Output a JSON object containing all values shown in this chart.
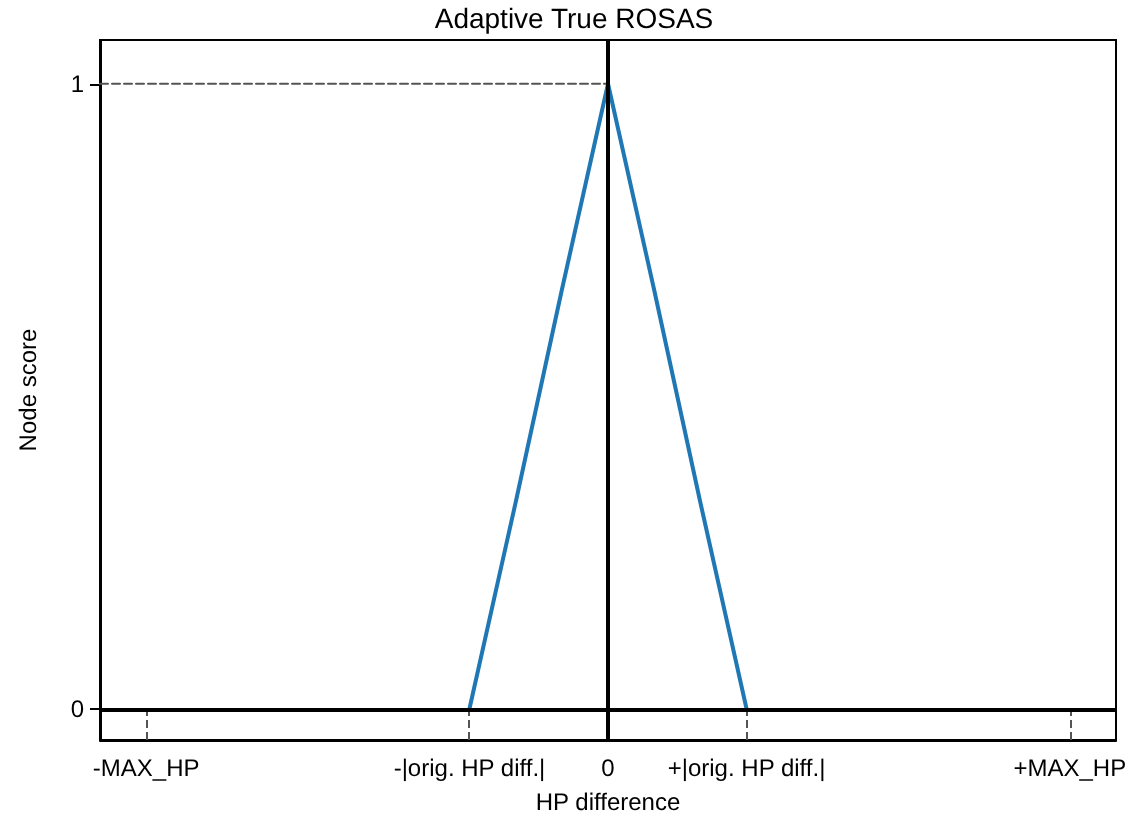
{
  "chart_data": {
    "type": "line",
    "title": "Adaptive True ROSAS",
    "xlabel": "HP difference",
    "ylabel": "Node score",
    "categories": [
      null,
      "-MAX_HP",
      null,
      null,
      null,
      null,
      null,
      null,
      "-|orig. HP diff.|",
      null,
      null,
      "0",
      null,
      null,
      "+|orig. HP diff.|",
      null,
      null,
      null,
      null,
      null,
      null,
      "+MAX_HP",
      null
    ],
    "series": [
      {
        "color": "#1f77b4",
        "values": [
          null,
          null,
          null,
          null,
          null,
          null,
          null,
          null,
          0,
          0.33,
          0.67,
          1,
          0.67,
          0.33,
          0,
          null,
          null,
          null,
          null,
          null,
          null,
          null,
          null
        ]
      },
      {
        "color": "#555555",
        "line_style": "dashed",
        "values": [
          1,
          1,
          1,
          1,
          1,
          1,
          1,
          1,
          1,
          1,
          1,
          1,
          null,
          null,
          null,
          null,
          null,
          null,
          null,
          null,
          null,
          null,
          null
        ]
      }
    ],
    "ylim": [
      -0.05,
      1.07
    ],
    "yticks": [
      0,
      1
    ],
    "marker": "none",
    "line_style": "solid",
    "ref_lines": [
      {
        "axis": "x",
        "value": "0",
        "color": "#000000"
      },
      {
        "axis": "y",
        "value": 0,
        "color": "#000000"
      }
    ]
  }
}
